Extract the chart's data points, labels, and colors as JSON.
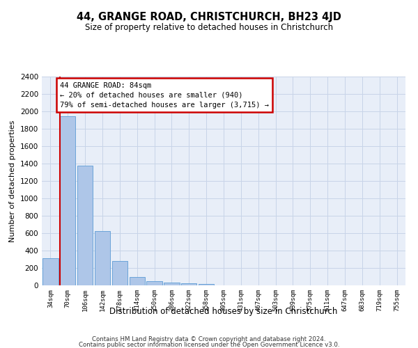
{
  "title": "44, GRANGE ROAD, CHRISTCHURCH, BH23 4JD",
  "subtitle": "Size of property relative to detached houses in Christchurch",
  "xlabel": "Distribution of detached houses by size in Christchurch",
  "ylabel": "Number of detached properties",
  "categories": [
    "34sqm",
    "70sqm",
    "106sqm",
    "142sqm",
    "178sqm",
    "214sqm",
    "250sqm",
    "286sqm",
    "322sqm",
    "358sqm",
    "395sqm",
    "431sqm",
    "467sqm",
    "503sqm",
    "539sqm",
    "575sqm",
    "611sqm",
    "647sqm",
    "683sqm",
    "719sqm",
    "755sqm"
  ],
  "values": [
    315,
    1945,
    1375,
    628,
    278,
    100,
    50,
    32,
    28,
    20,
    0,
    0,
    0,
    0,
    0,
    0,
    0,
    0,
    0,
    0,
    0
  ],
  "bar_color": "#aec6e8",
  "bar_edge_color": "#5b9bd5",
  "red_line_x": 1.0,
  "annotation_title": "44 GRANGE ROAD: 84sqm",
  "annotation_line1": "← 20% of detached houses are smaller (940)",
  "annotation_line2": "79% of semi-detached houses are larger (3,715) →",
  "annotation_box_color": "#ffffff",
  "annotation_box_edge": "#cc0000",
  "red_line_color": "#cc0000",
  "ylim": [
    0,
    2400
  ],
  "yticks": [
    0,
    200,
    400,
    600,
    800,
    1000,
    1200,
    1400,
    1600,
    1800,
    2000,
    2200,
    2400
  ],
  "grid_color": "#c8d4e8",
  "bg_color": "#e8eef8",
  "footer1": "Contains HM Land Registry data © Crown copyright and database right 2024.",
  "footer2": "Contains public sector information licensed under the Open Government Licence v3.0."
}
